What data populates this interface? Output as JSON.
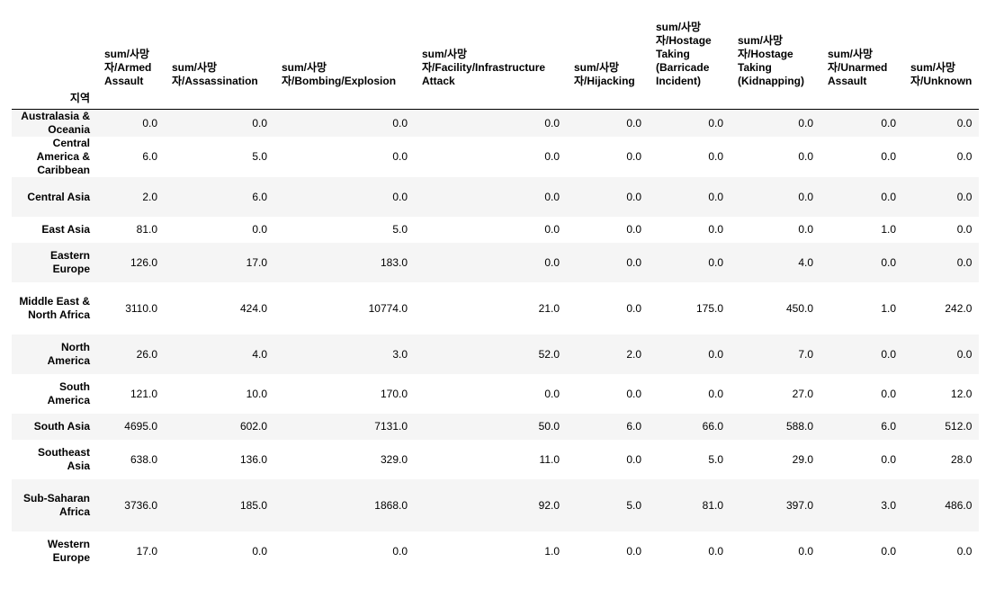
{
  "table": {
    "index_name": "지역",
    "columns": [
      "sum/사망자/Armed Assault",
      "sum/사망자/Assassination",
      "sum/사망자/Bombing/Explosion",
      "sum/사망자/Facility/Infrastructure Attack",
      "sum/사망자/Hijacking",
      "sum/사망자/Hostage Taking (Barricade Incident)",
      "sum/사망자/Hostage Taking (Kidnapping)",
      "sum/사망자/Unarmed Assault",
      "sum/사망자/Unknown"
    ],
    "rows": [
      {
        "region": "Australasia & Oceania",
        "values": [
          "0.0",
          "0.0",
          "0.0",
          "0.0",
          "0.0",
          "0.0",
          "0.0",
          "0.0",
          "0.0"
        ]
      },
      {
        "region": "Central America & Caribbean",
        "values": [
          "6.0",
          "5.0",
          "0.0",
          "0.0",
          "0.0",
          "0.0",
          "0.0",
          "0.0",
          "0.0"
        ]
      },
      {
        "region": "Central Asia",
        "values": [
          "2.0",
          "6.0",
          "0.0",
          "0.0",
          "0.0",
          "0.0",
          "0.0",
          "0.0",
          "0.0"
        ]
      },
      {
        "region": "East Asia",
        "values": [
          "81.0",
          "0.0",
          "5.0",
          "0.0",
          "0.0",
          "0.0",
          "0.0",
          "1.0",
          "0.0"
        ]
      },
      {
        "region": "Eastern Europe",
        "values": [
          "126.0",
          "17.0",
          "183.0",
          "0.0",
          "0.0",
          "0.0",
          "4.0",
          "0.0",
          "0.0"
        ]
      },
      {
        "region": "Middle East & North Africa",
        "values": [
          "3110.0",
          "424.0",
          "10774.0",
          "21.0",
          "0.0",
          "175.0",
          "450.0",
          "1.0",
          "242.0"
        ]
      },
      {
        "region": "North America",
        "values": [
          "26.0",
          "4.0",
          "3.0",
          "52.0",
          "2.0",
          "0.0",
          "7.0",
          "0.0",
          "0.0"
        ]
      },
      {
        "region": "South America",
        "values": [
          "121.0",
          "10.0",
          "170.0",
          "0.0",
          "0.0",
          "0.0",
          "27.0",
          "0.0",
          "12.0"
        ]
      },
      {
        "region": "South Asia",
        "values": [
          "4695.0",
          "602.0",
          "7131.0",
          "50.0",
          "6.0",
          "66.0",
          "588.0",
          "6.0",
          "512.0"
        ]
      },
      {
        "region": "Southeast Asia",
        "values": [
          "638.0",
          "136.0",
          "329.0",
          "11.0",
          "0.0",
          "5.0",
          "29.0",
          "0.0",
          "28.0"
        ]
      },
      {
        "region": "Sub-Saharan Africa",
        "values": [
          "3736.0",
          "185.0",
          "1868.0",
          "92.0",
          "5.0",
          "81.0",
          "397.0",
          "3.0",
          "486.0"
        ]
      },
      {
        "region": "Western Europe",
        "values": [
          "17.0",
          "0.0",
          "0.0",
          "1.0",
          "0.0",
          "0.0",
          "0.0",
          "0.0",
          "0.0"
        ]
      }
    ]
  }
}
